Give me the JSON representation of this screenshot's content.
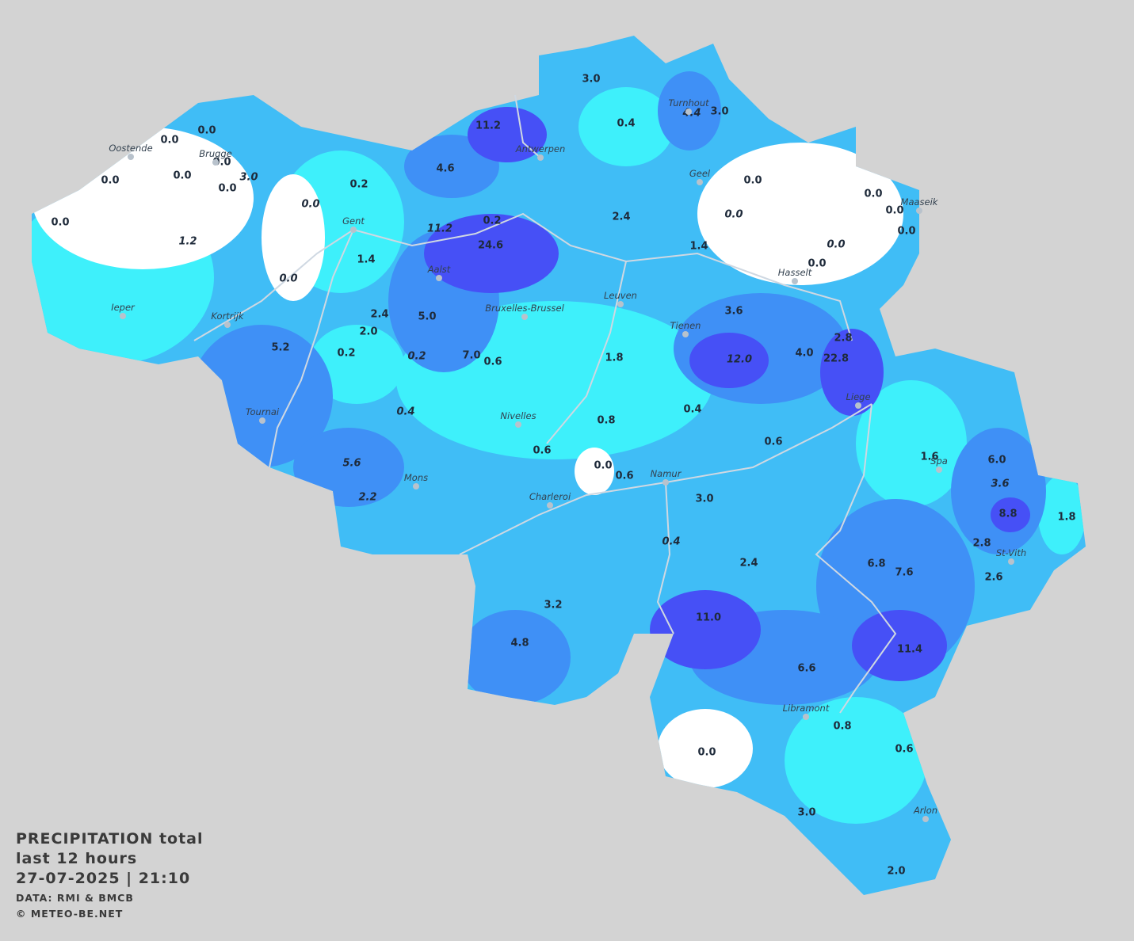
{
  "title": [
    "PRECIPITATION total",
    "last 12 hours",
    "27-07-2025  |  21:10"
  ],
  "credits": [
    "DATA: RMI & BMCB",
    "© METEO-BE.NET"
  ],
  "stations": [
    {
      "label": "0.0"
    },
    {
      "label": "0.0"
    },
    {
      "label": "0.0"
    },
    {
      "label": "0.0"
    },
    {
      "label": "0.0"
    },
    {
      "label": "0.0"
    },
    {
      "label": "3.0",
      "italic": true
    },
    {
      "label": "0.0"
    },
    {
      "label": "1.2",
      "italic": true
    },
    {
      "label": "0.0",
      "italic": true
    },
    {
      "label": "0.2"
    },
    {
      "label": "0.0",
      "italic": true
    },
    {
      "label": "1.4"
    },
    {
      "label": "11.2"
    },
    {
      "label": "4.6"
    },
    {
      "label": "0.2"
    },
    {
      "label": "11.2",
      "italic": true
    },
    {
      "label": "24.6"
    },
    {
      "label": "3.0"
    },
    {
      "label": "0.4"
    },
    {
      "label": "4.4",
      "italic": true
    },
    {
      "label": "3.0"
    },
    {
      "label": "2.4"
    },
    {
      "label": "1.4"
    },
    {
      "label": "0.0"
    },
    {
      "label": "0.0",
      "italic": true
    },
    {
      "label": "0.0"
    },
    {
      "label": "0.0"
    },
    {
      "label": "0.0"
    },
    {
      "label": "0.0",
      "italic": true
    },
    {
      "label": "0.0"
    },
    {
      "label": "2.4"
    },
    {
      "label": "5.0"
    },
    {
      "label": "2.0"
    },
    {
      "label": "5.2"
    },
    {
      "label": "0.2"
    },
    {
      "label": "0.2",
      "italic": true
    },
    {
      "label": "7.0"
    },
    {
      "label": "0.6"
    },
    {
      "label": "1.8"
    },
    {
      "label": "3.6"
    },
    {
      "label": "12.0",
      "italic": true
    },
    {
      "label": "4.0"
    },
    {
      "label": "2.8"
    },
    {
      "label": "22.8"
    },
    {
      "label": "0.4",
      "italic": true
    },
    {
      "label": "0.8"
    },
    {
      "label": "0.4"
    },
    {
      "label": "0.6"
    },
    {
      "label": "0.6"
    },
    {
      "label": "0.0"
    },
    {
      "label": "0.6"
    },
    {
      "label": "5.6",
      "italic": true
    },
    {
      "label": "2.2",
      "italic": true
    },
    {
      "label": "3.0"
    },
    {
      "label": "1.6"
    },
    {
      "label": "6.0"
    },
    {
      "label": "3.6",
      "italic": true
    },
    {
      "label": "8.8"
    },
    {
      "label": "1.8"
    },
    {
      "label": "0.4",
      "italic": true
    },
    {
      "label": "2.4"
    },
    {
      "label": "2.8"
    },
    {
      "label": "6.8"
    },
    {
      "label": "7.6"
    },
    {
      "label": "2.6"
    },
    {
      "label": "3.2"
    },
    {
      "label": "11.0"
    },
    {
      "label": "4.8"
    },
    {
      "label": "11.4"
    },
    {
      "label": "6.6"
    },
    {
      "label": "0.8"
    },
    {
      "label": "0.6"
    },
    {
      "label": "0.0"
    },
    {
      "label": "3.0"
    },
    {
      "label": "2.0"
    }
  ],
  "cities": [
    "Oostende",
    "Brugge",
    "Gent",
    "Antwerpen",
    "Turnhout",
    "Geel",
    "Maaseik",
    "Hasselt",
    "Aalst",
    "Bruxelles-Brussel",
    "Leuven",
    "Ieper",
    "Kortrijk",
    "Tienen",
    "Liege",
    "Tournai",
    "Nivelles",
    "Namur",
    "Spa",
    "Mons",
    "Charleroi",
    "St-Vith",
    "Libramont",
    "Arlon"
  ]
}
